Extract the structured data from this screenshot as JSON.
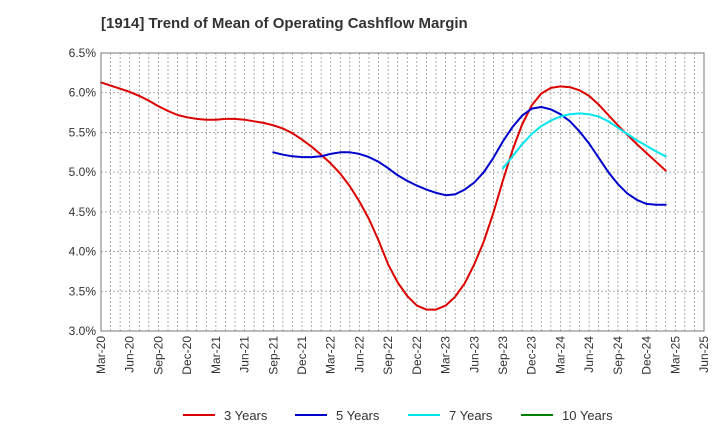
{
  "chart_data": {
    "type": "line",
    "title": "[1914]  Trend of Mean of Operating Cashflow Margin",
    "xlabel": "",
    "ylabel": "",
    "ylim": [
      3.0,
      6.5
    ],
    "x_ticks": [
      "Mar-20",
      "Jun-20",
      "Sep-20",
      "Dec-20",
      "Mar-21",
      "Jun-21",
      "Sep-21",
      "Dec-21",
      "Mar-22",
      "Jun-22",
      "Sep-22",
      "Dec-22",
      "Mar-23",
      "Jun-23",
      "Sep-23",
      "Dec-23",
      "Mar-24",
      "Jun-24",
      "Sep-24",
      "Dec-24",
      "Mar-25",
      "Jun-25"
    ],
    "y_ticks": [
      "3.0%",
      "3.5%",
      "4.0%",
      "4.5%",
      "5.0%",
      "5.5%",
      "6.0%",
      "6.5%"
    ],
    "grid": true,
    "legend_position": "bottom",
    "series": [
      {
        "name": "3 Years",
        "color": "#dd0000",
        "start_index": 0,
        "values": [
          6.13,
          6.09,
          6.05,
          6.01,
          5.96,
          5.9,
          5.83,
          5.77,
          5.72,
          5.69,
          5.67,
          5.66,
          5.66,
          5.67,
          5.67,
          5.66,
          5.64,
          5.62,
          5.59,
          5.55,
          5.49,
          5.41,
          5.32,
          5.22,
          5.11,
          4.98,
          4.82,
          4.63,
          4.41,
          4.14,
          3.84,
          3.61,
          3.44,
          3.32,
          3.27,
          3.27,
          3.32,
          3.43,
          3.6,
          3.84,
          4.13,
          4.49,
          4.9,
          5.28,
          5.6,
          5.84,
          5.99,
          6.06,
          6.08,
          6.07,
          6.03,
          5.96,
          5.85,
          5.72,
          5.59,
          5.47,
          5.35,
          5.24,
          5.13,
          5.02
        ]
      },
      {
        "name": "5 Years",
        "color": "#0000cc",
        "start_index": 18,
        "values": [
          5.25,
          5.22,
          5.2,
          5.19,
          5.19,
          5.2,
          5.23,
          5.25,
          5.25,
          5.23,
          5.19,
          5.13,
          5.05,
          4.96,
          4.89,
          4.83,
          4.78,
          4.74,
          4.71,
          4.72,
          4.78,
          4.87,
          5.0,
          5.18,
          5.39,
          5.57,
          5.71,
          5.8,
          5.82,
          5.79,
          5.73,
          5.64,
          5.51,
          5.36,
          5.18,
          5.0,
          4.85,
          4.73,
          4.65,
          4.6,
          4.59,
          4.59
        ]
      },
      {
        "name": "7 Years",
        "color": "#00e5ee",
        "start_index": 42,
        "values": [
          5.05,
          5.2,
          5.35,
          5.48,
          5.58,
          5.65,
          5.7,
          5.73,
          5.74,
          5.73,
          5.7,
          5.64,
          5.56,
          5.48,
          5.4,
          5.33,
          5.26,
          5.2
        ]
      },
      {
        "name": "10 Years",
        "color": "#008000",
        "start_index": 0,
        "values": []
      }
    ]
  }
}
